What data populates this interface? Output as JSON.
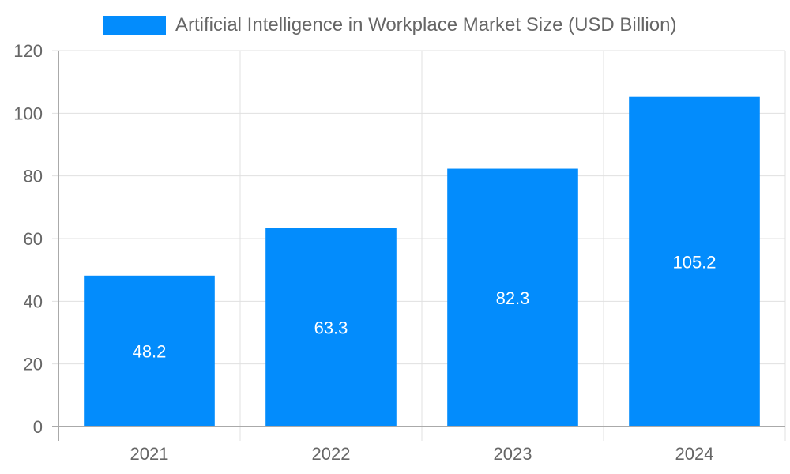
{
  "chart_data": {
    "type": "bar",
    "title": "",
    "categories": [
      "2021",
      "2022",
      "2023",
      "2024"
    ],
    "series": [
      {
        "name": "Artificial Intelligence in Workplace Market Size (USD Billion)",
        "values": [
          48.2,
          63.3,
          82.3,
          105.2
        ],
        "color": "#038cfc"
      }
    ],
    "values": [
      48.2,
      63.3,
      82.3,
      105.2
    ],
    "data_labels": [
      "48.2",
      "63.3",
      "82.3",
      "105.2"
    ],
    "xlabel": "",
    "ylabel": "",
    "ylim": [
      0,
      120
    ],
    "yticks": [
      "0",
      "20",
      "40",
      "60",
      "80",
      "100",
      "120"
    ],
    "grid": true,
    "legend_position": "top"
  },
  "legend": {
    "label": "Artificial Intelligence in Workplace Market Size (USD Billion)",
    "color": "#038cfc"
  }
}
